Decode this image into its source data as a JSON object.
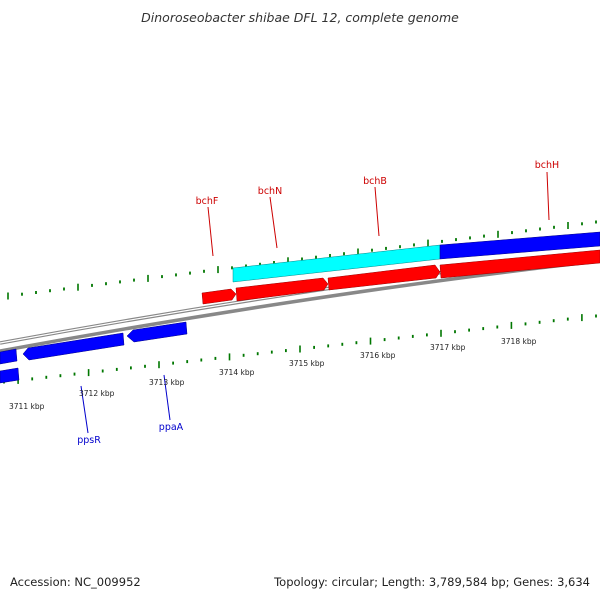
{
  "title": "Dinoroseobacter shibae DFL 12, complete genome",
  "footer": {
    "accession": "Accession: NC_009952",
    "stats": "Topology: circular; Length: 3,789,584 bp; Genes: 3,634"
  },
  "colors": {
    "forward_strand": "#ff0000",
    "reverse_strand": "#0000ff",
    "highlight": "#00ffff",
    "tick": "#007700",
    "backbone": "#888888",
    "label_forward": "#cc0000",
    "label_reverse": "#0000cc"
  },
  "ticks": {
    "scale_labels": [
      "3711 kbp",
      "3712 kbp",
      "3713 kbp",
      "3714 kbp",
      "3715 kbp",
      "3716 kbp",
      "3717 kbp",
      "3718 kbp"
    ]
  },
  "genes": {
    "forward": [
      {
        "name": "bchF"
      },
      {
        "name": "bchN"
      },
      {
        "name": "bchB"
      },
      {
        "name": "bchH"
      }
    ],
    "reverse": [
      {
        "name": "ppsR"
      },
      {
        "name": "ppaA"
      }
    ]
  }
}
